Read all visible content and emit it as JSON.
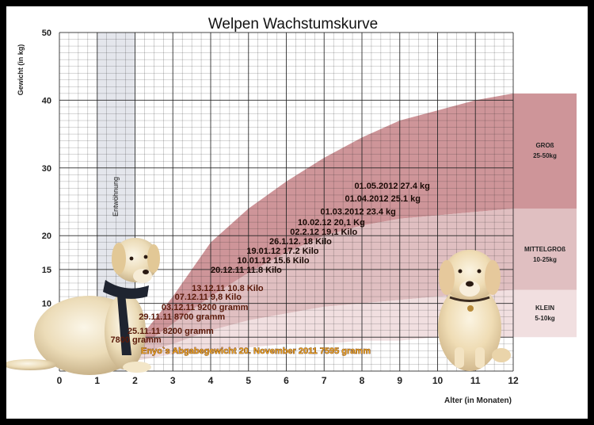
{
  "chart_data": {
    "type": "area",
    "title": "Welpen Wachstumskurve",
    "xlabel": "Alter (in Monaten)",
    "ylabel": "Gewicht (in kg)",
    "xlim": [
      0,
      12
    ],
    "ylim": [
      0,
      50
    ],
    "x_ticks": [
      0,
      1,
      2,
      3,
      4,
      5,
      6,
      7,
      8,
      9,
      10,
      11,
      12
    ],
    "y_ticks": [
      5,
      10,
      15,
      20,
      30,
      40,
      50
    ],
    "grid": true,
    "weaning_label": "Entwöhnung",
    "weaning_range": [
      1,
      2
    ],
    "bands": [
      {
        "label": "GROß",
        "range": "25-50kg",
        "color": "#c98a8e",
        "x": [
          2,
          3,
          4,
          5,
          6,
          7,
          8,
          9,
          10,
          11,
          12
        ],
        "lower": [
          3,
          7,
          11,
          14.5,
          17.5,
          20,
          21.5,
          22.5,
          23,
          23.5,
          24
        ],
        "upper": [
          4,
          11,
          19,
          24,
          28,
          31.5,
          34.5,
          37,
          38.5,
          40,
          41
        ]
      },
      {
        "label": "MITTELGROß",
        "range": "10-25kg",
        "color": "#ddb8ba",
        "x": [
          2,
          3,
          4,
          5,
          6,
          7,
          8,
          9,
          10,
          11,
          12
        ],
        "lower": [
          2.5,
          4,
          6,
          7.5,
          8.5,
          9.5,
          10,
          10.5,
          11,
          11.5,
          12
        ],
        "upper": [
          3,
          7,
          11,
          14.5,
          17.5,
          20,
          21.5,
          22.5,
          23,
          23.5,
          24
        ]
      },
      {
        "label": "KLEIN",
        "range": "5-10kg",
        "color": "#f0dcdd",
        "x": [
          2,
          3,
          4,
          5,
          6,
          7,
          8,
          9,
          10,
          11,
          12
        ],
        "lower": [
          1.5,
          2.5,
          3,
          3.5,
          4,
          4,
          4.5,
          4.5,
          5,
          5,
          5
        ],
        "upper": [
          2.5,
          4,
          6,
          7.5,
          8.5,
          9.5,
          10,
          10.5,
          11,
          11.5,
          12
        ]
      }
    ],
    "annotations": [
      {
        "text": "01.05.2012 27.4 kg",
        "x": 7.8,
        "y": 27.4
      },
      {
        "text": "01.04.2012 25.1 kg",
        "x": 7.55,
        "y": 25.5
      },
      {
        "text": "01.03.2012 23.4 kg",
        "x": 6.9,
        "y": 23.6
      },
      {
        "text": "10.02.12 20,1 Kg",
        "x": 6.3,
        "y": 22.0
      },
      {
        "text": "02.2.12 19,1 Kilo",
        "x": 6.1,
        "y": 20.6
      },
      {
        "text": "26.1.12. 18 Kilo",
        "x": 5.55,
        "y": 19.2
      },
      {
        "text": "19.01.12 17.2 Kilo",
        "x": 4.95,
        "y": 17.8
      },
      {
        "text": "10.01.12 15.6 Kilo",
        "x": 4.7,
        "y": 16.4
      },
      {
        "text": "20.12.11 11.8 Kilo",
        "x": 4.0,
        "y": 15.0
      },
      {
        "text": "13.12.11 10.8 Kilo",
        "x": 3.5,
        "y": 12.3
      },
      {
        "text": "07.12.11 9,8 Kilo",
        "x": 3.05,
        "y": 11.0
      },
      {
        "text": "03.12.11 9200 gramm",
        "x": 2.7,
        "y": 9.5
      },
      {
        "text": "29.11.11 8700 gramm",
        "x": 2.1,
        "y": 8.1
      },
      {
        "text": "25.11.11 8200 gramm",
        "x": 1.8,
        "y": 6.0
      },
      {
        "text": "7800 gramm",
        "x": 1.35,
        "y": 4.7
      }
    ],
    "handover_note": "Enyo`s Abgabegewicht 20. November 2011 7595 gramm"
  },
  "colors": {
    "frame": "#000000",
    "grid": "#222222",
    "weaning": "#e4e6ec"
  },
  "images": [
    "sitting-puppy-left",
    "sitting-puppy-right"
  ]
}
